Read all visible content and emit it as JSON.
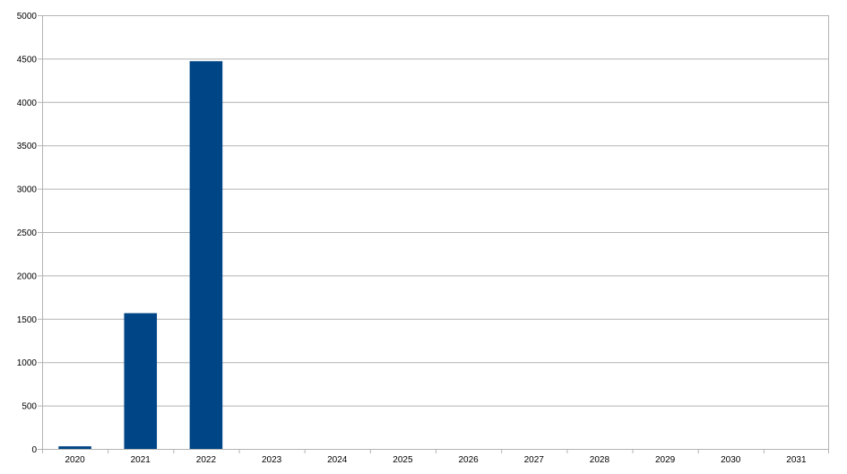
{
  "chart_data": {
    "type": "bar",
    "categories": [
      "2020",
      "2021",
      "2022",
      "2023",
      "2024",
      "2025",
      "2026",
      "2027",
      "2028",
      "2029",
      "2030",
      "2031"
    ],
    "values": [
      30,
      1565,
      4470,
      0,
      0,
      0,
      0,
      0,
      0,
      0,
      0,
      0
    ],
    "title": "",
    "xlabel": "",
    "ylabel": "",
    "ylim": [
      0,
      5000
    ],
    "yticks": [
      "0",
      "500",
      "1000",
      "1500",
      "2000",
      "2500",
      "3000",
      "3500",
      "4000",
      "4500",
      "5000"
    ],
    "grid": true,
    "legend": "none",
    "bar_color": "#004586"
  }
}
